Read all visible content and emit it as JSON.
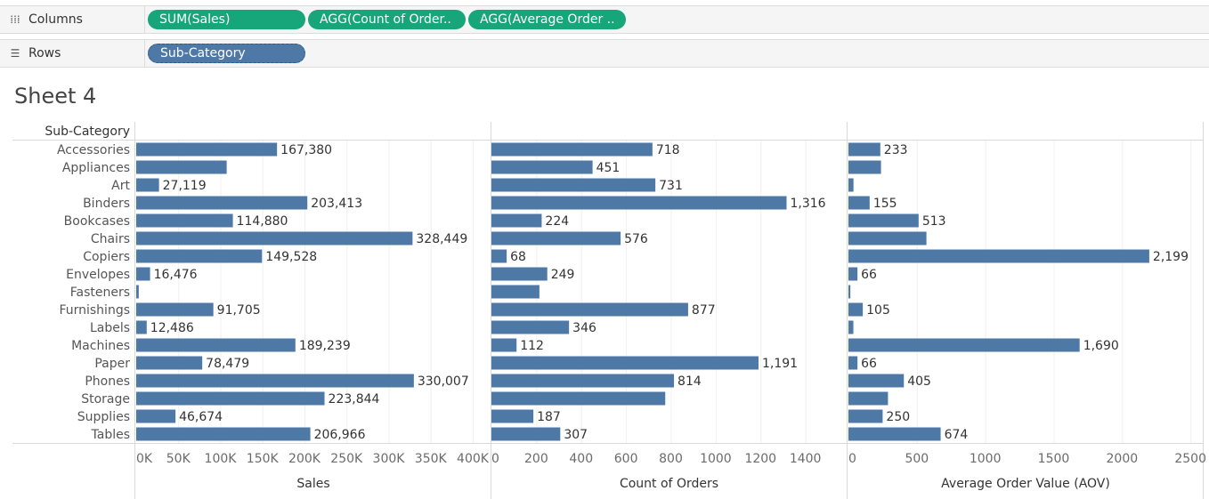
{
  "shelves": {
    "columns": {
      "label": "Columns",
      "icon": "columns-icon",
      "pills": [
        "SUM(Sales)",
        "AGG(Count of Order..",
        "AGG(Average Order .."
      ]
    },
    "rows": {
      "label": "Rows",
      "icon": "rows-icon",
      "pills": [
        "Sub-Category"
      ]
    }
  },
  "sheet_title": "Sheet 4",
  "colors": {
    "bar": "#4e79a7",
    "pill_green": "#17a57a",
    "pill_blue": "#4e79a7"
  },
  "chart_data": {
    "type": "bar",
    "orientation": "horizontal",
    "row_header": "Sub-Category",
    "categories": [
      "Accessories",
      "Appliances",
      "Art",
      "Binders",
      "Bookcases",
      "Chairs",
      "Copiers",
      "Envelopes",
      "Fasteners",
      "Furnishings",
      "Labels",
      "Machines",
      "Paper",
      "Phones",
      "Storage",
      "Supplies",
      "Tables"
    ],
    "panels": [
      {
        "xlabel": "Sales",
        "xlim": [
          0,
          400000
        ],
        "ticks": [
          0,
          50000,
          100000,
          150000,
          200000,
          250000,
          300000,
          350000,
          400000
        ],
        "tick_labels": [
          "0K",
          "50K",
          "100K",
          "150K",
          "200K",
          "250K",
          "300K",
          "350K",
          "400K"
        ],
        "values": [
          167380,
          107532,
          27119,
          203413,
          114880,
          328449,
          149528,
          16476,
          3024,
          91705,
          12486,
          189239,
          78479,
          330007,
          223844,
          46674,
          206966
        ],
        "labels": [
          "167,380",
          "",
          "27,119",
          "203,413",
          "114,880",
          "328,449",
          "149,528",
          "16,476",
          "",
          "91,705",
          "12,486",
          "189,239",
          "78,479",
          "330,007",
          "223,844",
          "46,674",
          "206,966"
        ]
      },
      {
        "xlabel": "Count of Orders",
        "xlim": [
          0,
          1580
        ],
        "ticks": [
          0,
          200,
          400,
          600,
          800,
          1000,
          1200,
          1400
        ],
        "tick_labels": [
          "0",
          "200",
          "400",
          "600",
          "800",
          "1000",
          "1200",
          "1400"
        ],
        "values": [
          718,
          451,
          731,
          1316,
          224,
          576,
          68,
          249,
          214,
          877,
          346,
          112,
          1191,
          814,
          775,
          187,
          307
        ],
        "labels": [
          "718",
          "451",
          "731",
          "1,316",
          "224",
          "576",
          "68",
          "249",
          "",
          "877",
          "346",
          "112",
          "1,191",
          "814",
          "",
          "187",
          "307"
        ]
      },
      {
        "xlabel": "Average Order Value (AOV)",
        "xlim": [
          0,
          2590
        ],
        "ticks": [
          0,
          500,
          1000,
          1500,
          2000,
          2500
        ],
        "tick_labels": [
          "0",
          "500",
          "1000",
          "1500",
          "2000",
          "2500"
        ],
        "values": [
          233,
          238,
          37,
          155,
          513,
          570,
          2199,
          66,
          14,
          105,
          36,
          1690,
          66,
          405,
          289,
          250,
          674
        ],
        "labels": [
          "233",
          "",
          "",
          "155",
          "513",
          "",
          "2,199",
          "66",
          "",
          "105",
          "",
          "1,690",
          "66",
          "405",
          "",
          "250",
          "674"
        ]
      }
    ]
  }
}
